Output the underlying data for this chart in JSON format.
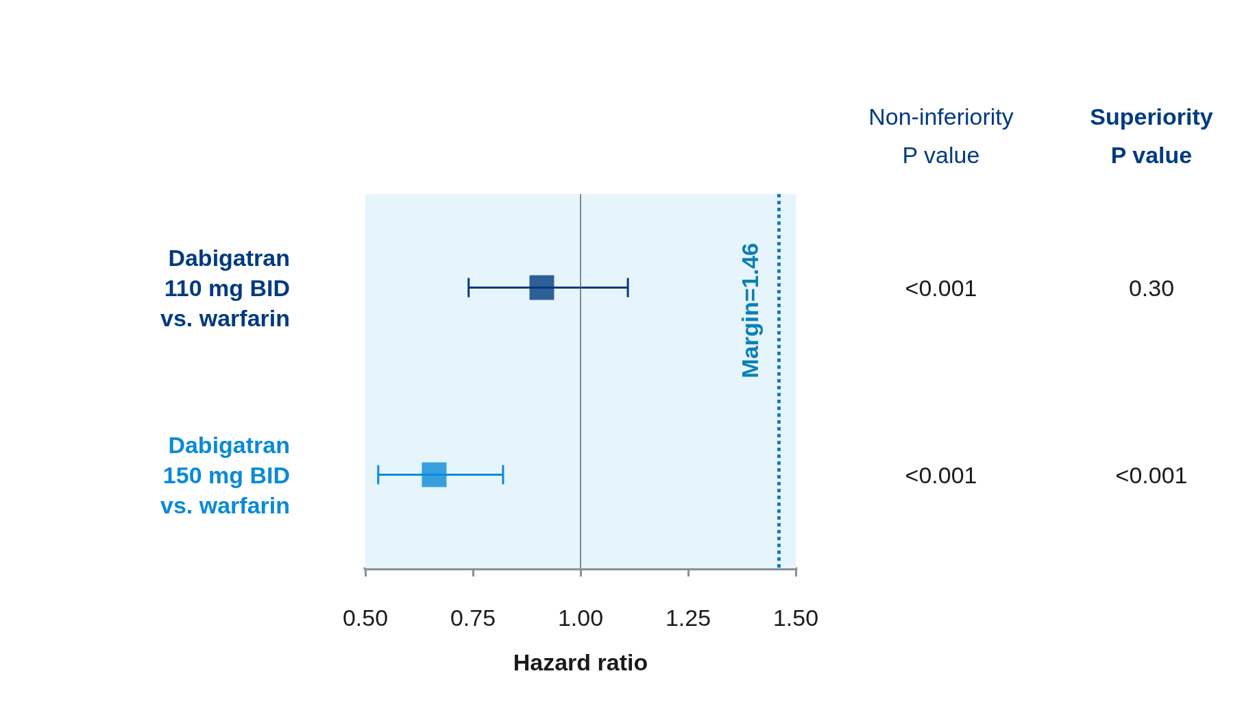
{
  "chart_data": {
    "type": "scatter",
    "orientation": "horizontal",
    "xlabel": "Hazard ratio",
    "categories": [
      "Dabigatran\n110 mg BID\nvs. warfarin",
      "Dabigatran\n150 mg BID\nvs. warfarin"
    ],
    "values": [
      0.91,
      0.66
    ],
    "errors": [
      [
        0.74,
        1.11
      ],
      [
        0.53,
        0.82
      ]
    ],
    "colors": [
      "#003a80",
      "#0a8ad6"
    ],
    "marker": "square",
    "xlim": [
      0.5,
      1.5
    ],
    "xticks": [
      {
        "value": 0.5,
        "label": "0.50"
      },
      0.75,
      {
        "value": 1.0,
        "label": "1.00"
      },
      1.25,
      {
        "value": 1.5,
        "label": "1.50"
      }
    ],
    "grid": false,
    "ref_lines": [
      {
        "axis": "x",
        "value": 1.0,
        "label": null,
        "color": "#666666",
        "line_style": "solid"
      },
      {
        "axis": "x",
        "value": 1.46,
        "label": "Margin=1.46",
        "color": "#0a7fb8",
        "line_style": "dotted"
      }
    ],
    "bands": [
      {
        "axis": "x",
        "from": 0.5,
        "to": 1.5,
        "label": null,
        "color": "#e6f4fc"
      }
    ],
    "annotations": [
      "Non-inferiority\nP value",
      "Superiority\nP value",
      "<0.001",
      "0.30",
      "<0.001",
      "<0.001"
    ]
  }
}
